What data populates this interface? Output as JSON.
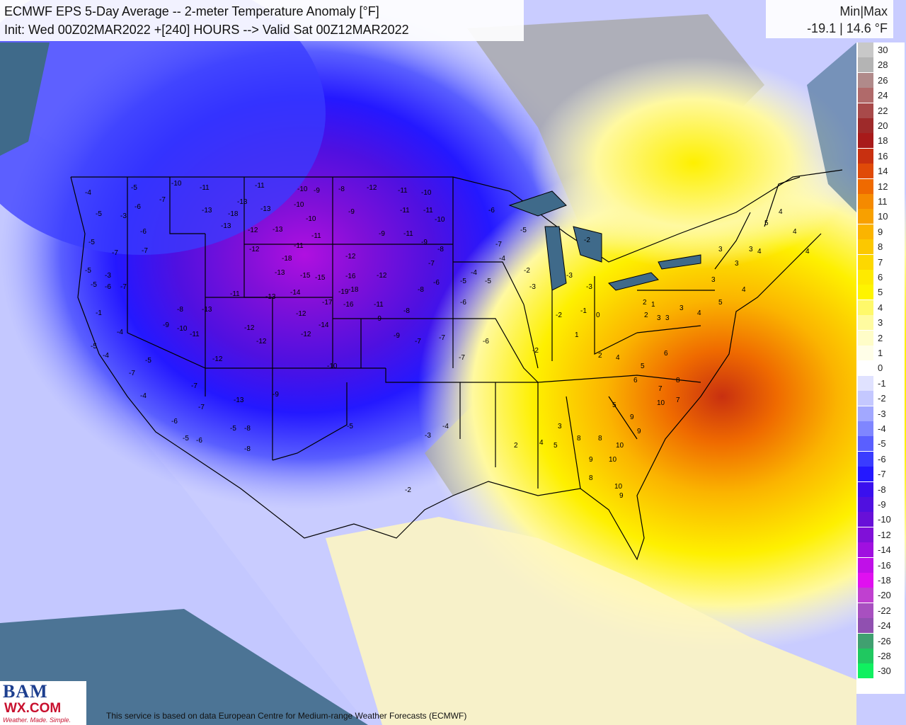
{
  "header": {
    "title_line1": "ECMWF EPS 5-Day Average -- 2-meter Temperature Anomaly [°F]",
    "title_line2": "Init: Wed 00Z02MAR2022 +[240] HOURS --> Valid Sat 00Z12MAR2022"
  },
  "minmax": {
    "label": "Min|Max",
    "value": "-19.1 | 14.6 °F"
  },
  "legend": [
    {
      "label": "30",
      "color": "#c8c8c8"
    },
    {
      "label": "28",
      "color": "#b4b4b4"
    },
    {
      "label": "26",
      "color": "#b08a8a"
    },
    {
      "label": "24",
      "color": "#b06a6a"
    },
    {
      "label": "22",
      "color": "#a84a4a"
    },
    {
      "label": "20",
      "color": "#9e2a2a"
    },
    {
      "label": "18",
      "color": "#a81a1a"
    },
    {
      "label": "16",
      "color": "#c83010"
    },
    {
      "label": "14",
      "color": "#e04a08"
    },
    {
      "label": "12",
      "color": "#ef6a00"
    },
    {
      "label": "11",
      "color": "#f58a00"
    },
    {
      "label": "10",
      "color": "#f8a000"
    },
    {
      "label": "9",
      "color": "#fbb400"
    },
    {
      "label": "8",
      "color": "#fcc800"
    },
    {
      "label": "7",
      "color": "#fdd800"
    },
    {
      "label": "6",
      "color": "#feea00"
    },
    {
      "label": "5",
      "color": "#fef400"
    },
    {
      "label": "4",
      "color": "#fff96a"
    },
    {
      "label": "3",
      "color": "#fffba0"
    },
    {
      "label": "2",
      "color": "#fffdc8"
    },
    {
      "label": "1",
      "color": "#fffee8"
    },
    {
      "label": "0",
      "color": "#ffffff"
    },
    {
      "label": "-1",
      "color": "#e0e2ff"
    },
    {
      "label": "-2",
      "color": "#c4c8ff"
    },
    {
      "label": "-3",
      "color": "#a2a8ff"
    },
    {
      "label": "-4",
      "color": "#7f86ff"
    },
    {
      "label": "-5",
      "color": "#5a5fff"
    },
    {
      "label": "-6",
      "color": "#3a3cff"
    },
    {
      "label": "-7",
      "color": "#2418ff"
    },
    {
      "label": "-8",
      "color": "#3a10ee"
    },
    {
      "label": "-9",
      "color": "#5010e0"
    },
    {
      "label": "-10",
      "color": "#6810d8"
    },
    {
      "label": "-12",
      "color": "#8010d8"
    },
    {
      "label": "-14",
      "color": "#a010e0"
    },
    {
      "label": "-16",
      "color": "#c010e8"
    },
    {
      "label": "-18",
      "color": "#e010f0"
    },
    {
      "label": "-20",
      "color": "#c040d0"
    },
    {
      "label": "-22",
      "color": "#a850c0"
    },
    {
      "label": "-24",
      "color": "#9050b0"
    },
    {
      "label": "-26",
      "color": "#40a070"
    },
    {
      "label": "-28",
      "color": "#20c860"
    },
    {
      "label": "-30",
      "color": "#10f060"
    }
  ],
  "map_labels": {
    "west": [
      "-4",
      "-5",
      "-6",
      "-7",
      "-5",
      "-3",
      "-6",
      "-5",
      "-7",
      "-5",
      "-3",
      "-7",
      "-5",
      "-6",
      "-7",
      "-1",
      "-4",
      "-5",
      "-4",
      "-7",
      "-5",
      "-4",
      "-7",
      "-6",
      "-5",
      "-7",
      "-5",
      "-8",
      "-6",
      "-8"
    ],
    "rockies": [
      "-10",
      "-11",
      "-13",
      "-18",
      "-13",
      "-11",
      "-10",
      "-9",
      "-13",
      "-13",
      "-10",
      "-10",
      "-12",
      "-11",
      "-12",
      "-18",
      "-13",
      "-15",
      "-14",
      "-13",
      "-11",
      "-13",
      "-15",
      "-17",
      "-16",
      "-12",
      "-14",
      "-12",
      "-13",
      "-11",
      "-12",
      "-12",
      "-10",
      "-9",
      "-13",
      "-9",
      "-10",
      "-11",
      "-8",
      "-12"
    ],
    "plains": [
      "-8",
      "-12",
      "-11",
      "-10",
      "-9",
      "-11",
      "-11",
      "-10",
      "-9",
      "-9",
      "-11",
      "-8",
      "-12",
      "-16",
      "-19",
      "-18",
      "-12",
      "-11",
      "-9",
      "-8",
      "-7",
      "-9",
      "-8",
      "-7",
      "-6",
      "-7",
      "-5",
      "-6",
      "-4",
      "-7",
      "-6",
      "-5",
      "-4",
      "-3",
      "-5",
      "-2"
    ],
    "midwest": [
      "-6",
      "-7",
      "-4",
      "-5",
      "-3",
      "-2",
      "-3",
      "-2",
      "-3",
      "-2",
      "-1",
      "-2",
      "0",
      "1",
      "2"
    ],
    "east": [
      "1",
      "2",
      "3",
      "3",
      "2",
      "4",
      "5",
      "3",
      "4",
      "6",
      "7",
      "8",
      "5",
      "9",
      "10",
      "8",
      "9",
      "10",
      "9",
      "10",
      "8",
      "10",
      "9",
      "8",
      "7",
      "6",
      "5",
      "4",
      "3",
      "2"
    ],
    "northeast": [
      "3",
      "4",
      "3",
      "4",
      "5",
      "4",
      "3",
      "4",
      "5",
      "3",
      "4"
    ]
  },
  "footer": {
    "attribution": "This service is based on data European Centre for Medium-range Weather Forecasts (ECMWF)"
  },
  "logo": {
    "top": "BAM",
    "mid": "WX.COM",
    "tag": "Weather. Made. Simple."
  }
}
